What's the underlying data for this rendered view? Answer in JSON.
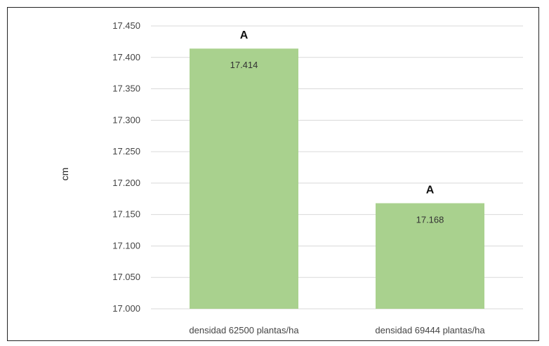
{
  "chart_data": {
    "type": "bar",
    "categories": [
      "densidad 62500  plantas/ha",
      "densidad 69444  plantas/ha"
    ],
    "values": [
      17.414,
      17.168
    ],
    "data_labels": [
      "17.414",
      "17.168"
    ],
    "annotations": [
      "A",
      "A"
    ],
    "title": "",
    "xlabel": "",
    "ylabel": "cm",
    "ylim": [
      17.0,
      17.45
    ],
    "yticks": [
      17.0,
      17.05,
      17.1,
      17.15,
      17.2,
      17.25,
      17.3,
      17.35,
      17.4,
      17.45
    ],
    "ytick_labels": [
      "17.000",
      "17.050",
      "17.100",
      "17.150",
      "17.200",
      "17.250",
      "17.300",
      "17.350",
      "17.400",
      "17.450"
    ],
    "grid": true,
    "legend": "none",
    "bar_color": "#a9d18e",
    "grid_color": "#d9d9d9"
  }
}
